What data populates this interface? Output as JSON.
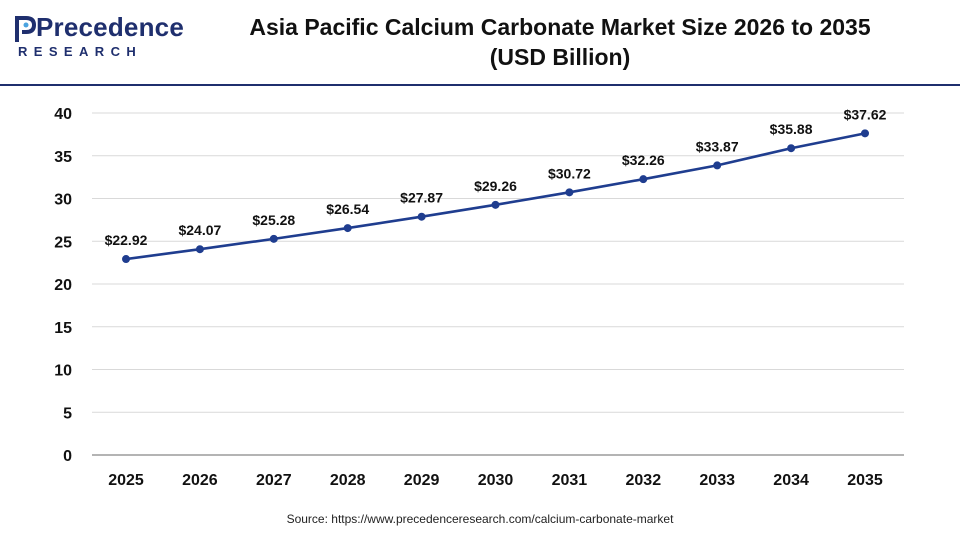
{
  "header": {
    "logo_word": "Precedence",
    "logo_sub": "RESEARCH",
    "title_line1": "Asia Pacific Calcium Carbonate Market Size 2026 to 2035",
    "title_line2": "(USD Billion)"
  },
  "footer": {
    "source": "Source: https://www.precedenceresearch.com/calcium-carbonate-market"
  },
  "colors": {
    "brand": "#1f2f6e",
    "line": "#1f3d8f",
    "grid": "#d9d9d9",
    "axis": "#888888"
  },
  "chart_data": {
    "type": "line",
    "title": "Asia Pacific Calcium Carbonate Market Size 2026 to 2035 (USD Billion)",
    "xlabel": "",
    "ylabel": "",
    "categories": [
      "2025",
      "2026",
      "2027",
      "2028",
      "2029",
      "2030",
      "2031",
      "2032",
      "2033",
      "2034",
      "2035"
    ],
    "values": [
      22.92,
      24.07,
      25.28,
      26.54,
      27.87,
      29.26,
      30.72,
      32.26,
      33.87,
      35.88,
      37.62
    ],
    "data_labels": [
      "$22.92",
      "$24.07",
      "$25.28",
      "$26.54",
      "$27.87",
      "$29.26",
      "$30.72",
      "$32.26",
      "$33.87",
      "$35.88",
      "$37.62"
    ],
    "ylim": [
      0,
      40
    ],
    "yticks": [
      0,
      5,
      10,
      15,
      20,
      25,
      30,
      35,
      40
    ],
    "grid": "horizontal",
    "legend": "none"
  }
}
